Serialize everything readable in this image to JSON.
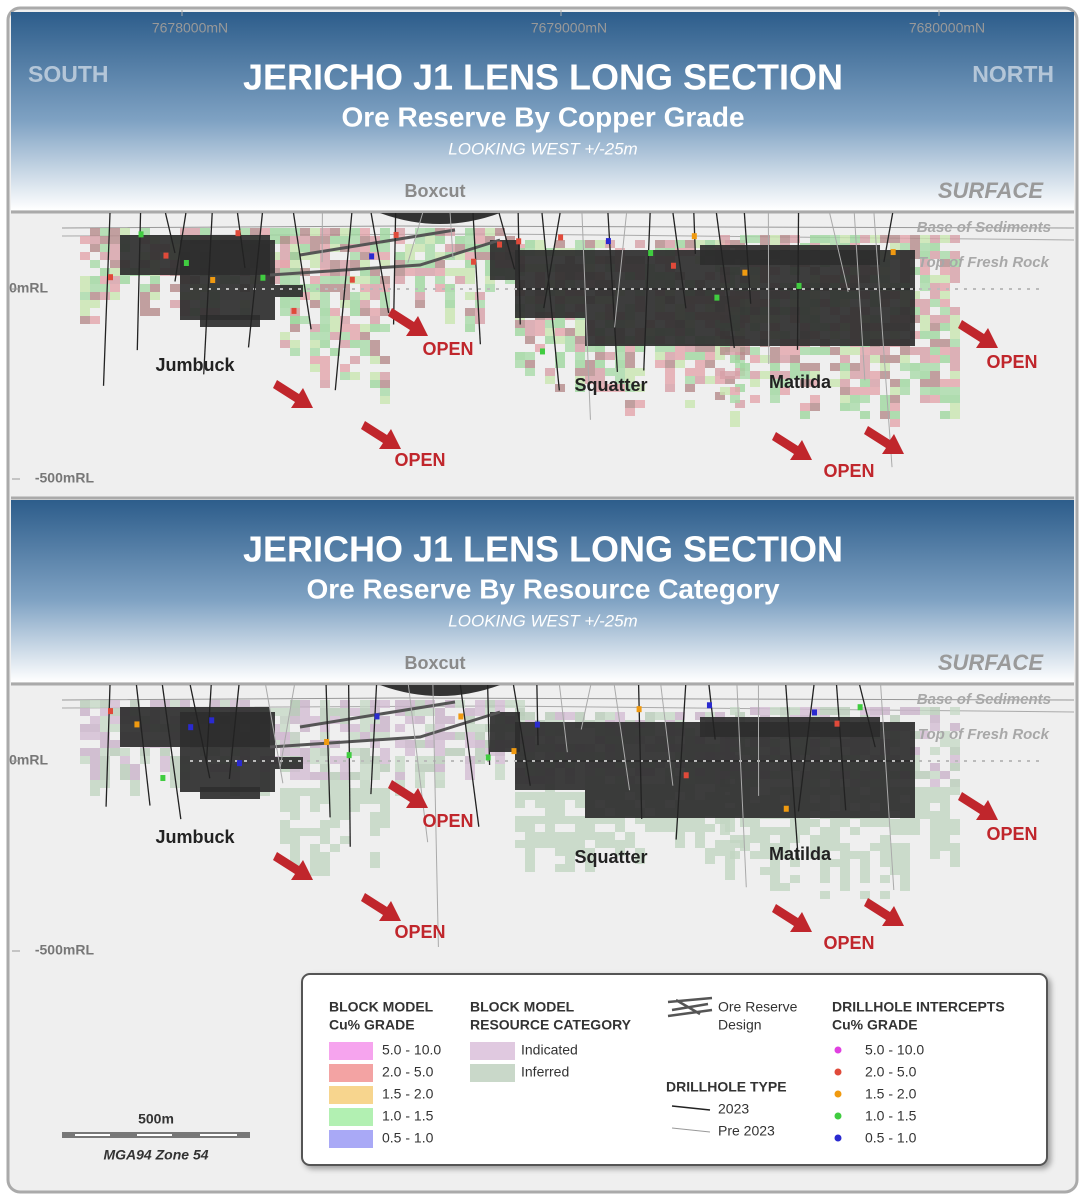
{
  "axis_labels": [
    "7678000mN",
    "7679000mN",
    "7680000mN"
  ],
  "panels": [
    {
      "title": "JERICHO J1 LENS LONG SECTION",
      "subtitle": "Ore Reserve By Copper Grade",
      "view": "LOOKING WEST +/-25m",
      "south": "SOUTH",
      "north": "NORTH",
      "boxcut": "Boxcut",
      "surface": "SURFACE",
      "base_of_sediments": "Base of Sediments",
      "top_of_fresh_rock": "Top of Fresh Rock",
      "rl_labels": [
        "0mRL",
        "-500mRL"
      ],
      "lenses": [
        "Jumbuck",
        "Squatter",
        "Matilda"
      ],
      "open_labels": [
        "OPEN",
        "OPEN",
        "OPEN",
        "OPEN"
      ]
    },
    {
      "title": "JERICHO J1 LENS LONG SECTION",
      "subtitle": "Ore Reserve By Resource Category",
      "view": "LOOKING WEST +/-25m",
      "boxcut": "Boxcut",
      "surface": "SURFACE",
      "base_of_sediments": "Base of Sediments",
      "top_of_fresh_rock": "Top of Fresh Rock",
      "rl_labels": [
        "0mRL",
        "-500mRL"
      ],
      "lenses": [
        "Jumbuck",
        "Squatter",
        "Matilda"
      ],
      "open_labels": [
        "OPEN",
        "OPEN",
        "OPEN",
        "OPEN"
      ]
    }
  ],
  "legend": {
    "grade": {
      "heading": [
        "BLOCK MODEL",
        "Cu% GRADE"
      ],
      "items": [
        {
          "label": "5.0 - 10.0",
          "color": "#f6a4ee"
        },
        {
          "label": "2.0 - 5.0",
          "color": "#f3a3a3"
        },
        {
          "label": "1.5 - 2.0",
          "color": "#f7d58e"
        },
        {
          "label": "1.0 - 1.5",
          "color": "#b2f0b2"
        },
        {
          "label": "0.5 - 1.0",
          "color": "#a9a9f6"
        }
      ]
    },
    "category": {
      "heading": [
        "BLOCK MODEL",
        "RESOURCE CATEGORY"
      ],
      "items": [
        {
          "label": "Indicated",
          "color": "#e0c9e0"
        },
        {
          "label": "Inferred",
          "color": "#c9d8c9"
        }
      ]
    },
    "ore_reserve_design": [
      "Ore Reserve",
      "Design"
    ],
    "drillhole_type": {
      "heading": "DRILLHOLE TYPE",
      "items": [
        "2023",
        "Pre 2023"
      ]
    },
    "intercepts": {
      "heading": [
        "DRILLHOLE INTERCEPTS",
        "Cu% GRADE"
      ],
      "items": [
        {
          "label": "5.0 - 10.0",
          "color": "#e040e0"
        },
        {
          "label": "2.0 - 5.0",
          "color": "#e04a3a"
        },
        {
          "label": "1.5 - 2.0",
          "color": "#f09a10"
        },
        {
          "label": "1.0 - 1.5",
          "color": "#40cc40"
        },
        {
          "label": "0.5 - 1.0",
          "color": "#2a2ad0"
        }
      ]
    }
  },
  "scale": {
    "length": "500m",
    "zone": "MGA94 Zone 54"
  }
}
